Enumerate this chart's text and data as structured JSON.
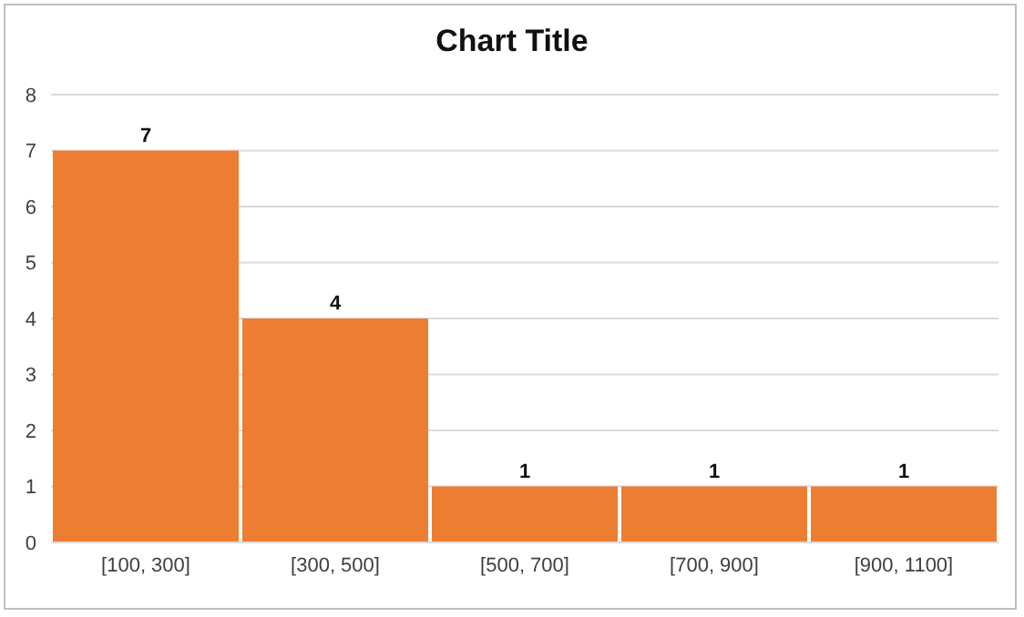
{
  "chart_data": {
    "type": "bar",
    "title": "Chart Title",
    "categories": [
      "[100, 300]",
      "[300, 500]",
      "[500, 700]",
      "[700, 900]",
      "[900, 1100]"
    ],
    "values": [
      7,
      4,
      1,
      1,
      1
    ],
    "color": "#ed7d31",
    "ylim": [
      0,
      8
    ],
    "yticks": [
      0,
      1,
      2,
      3,
      4,
      5,
      6,
      7,
      8
    ],
    "grid": "y",
    "data_labels": true
  }
}
